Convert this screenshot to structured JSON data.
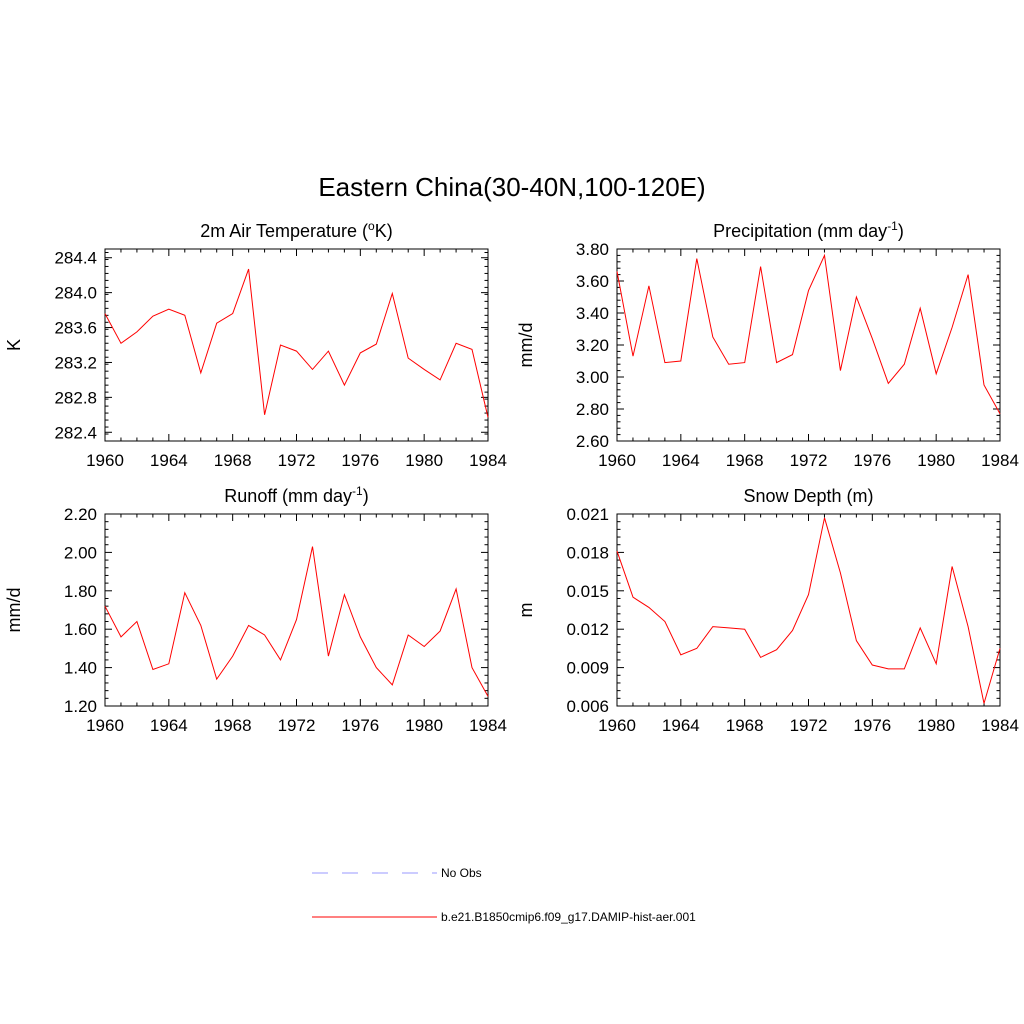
{
  "figure": {
    "title": "Eastern China(30-40N,100-120E)"
  },
  "legend": {
    "items": [
      {
        "label": "No Obs",
        "color": "#9999ff",
        "dashed": true
      },
      {
        "label": "b.e21.B1850cmip6.f09_g17.DAMIP-hist-aer.001",
        "color": "#ff0000",
        "dashed": false
      }
    ]
  },
  "chart_data": [
    {
      "type": "line",
      "title": "2m Air Temperature (",
      "title_sup": "o",
      "title_tail": "K)",
      "ylabel": "K",
      "xlim": [
        1960,
        1984
      ],
      "ylim": [
        282.3,
        284.5
      ],
      "xticks": [
        1960,
        1964,
        1968,
        1972,
        1976,
        1980,
        1984
      ],
      "yticks": [
        282.4,
        282.8,
        283.2,
        283.6,
        284.0,
        284.4
      ],
      "ytick_labels": [
        "282.4",
        "282.8",
        "283.2",
        "283.6",
        "284.0",
        "284.4"
      ],
      "x": [
        1960,
        1961,
        1962,
        1963,
        1964,
        1965,
        1966,
        1967,
        1968,
        1969,
        1970,
        1971,
        1972,
        1973,
        1974,
        1975,
        1976,
        1977,
        1978,
        1979,
        1980,
        1981,
        1982,
        1983,
        1984
      ],
      "series": [
        {
          "color": "#ff0000",
          "values": [
            283.76,
            283.42,
            283.55,
            283.73,
            283.81,
            283.74,
            283.08,
            283.65,
            283.76,
            284.27,
            282.6,
            283.4,
            283.33,
            283.12,
            283.33,
            282.94,
            283.31,
            283.41,
            283.99,
            283.25,
            283.12,
            283.0,
            283.42,
            283.35,
            282.57
          ]
        }
      ]
    },
    {
      "type": "line",
      "title": "Precipitation (mm day",
      "title_sup": "-1",
      "title_tail": ")",
      "ylabel": "mm/d",
      "xlim": [
        1960,
        1984
      ],
      "ylim": [
        2.6,
        3.8
      ],
      "xticks": [
        1960,
        1964,
        1968,
        1972,
        1976,
        1980,
        1984
      ],
      "yticks": [
        2.6,
        2.8,
        3.0,
        3.2,
        3.4,
        3.6,
        3.8
      ],
      "ytick_labels": [
        "2.60",
        "2.80",
        "3.00",
        "3.20",
        "3.40",
        "3.60",
        "3.80"
      ],
      "x": [
        1960,
        1961,
        1962,
        1963,
        1964,
        1965,
        1966,
        1967,
        1968,
        1969,
        1970,
        1971,
        1972,
        1973,
        1974,
        1975,
        1976,
        1977,
        1978,
        1979,
        1980,
        1981,
        1982,
        1983,
        1984
      ],
      "series": [
        {
          "color": "#ff0000",
          "values": [
            3.66,
            3.13,
            3.57,
            3.09,
            3.1,
            3.74,
            3.25,
            3.08,
            3.09,
            3.69,
            3.09,
            3.14,
            3.54,
            3.76,
            3.04,
            3.5,
            3.24,
            2.96,
            3.08,
            3.43,
            3.02,
            3.31,
            3.64,
            2.95,
            2.77
          ]
        }
      ]
    },
    {
      "type": "line",
      "title": "Runoff (mm day",
      "title_sup": "-1",
      "title_tail": ")",
      "ylabel": "mm/d",
      "xlim": [
        1960,
        1984
      ],
      "ylim": [
        1.2,
        2.2
      ],
      "xticks": [
        1960,
        1964,
        1968,
        1972,
        1976,
        1980,
        1984
      ],
      "yticks": [
        1.2,
        1.4,
        1.6,
        1.8,
        2.0,
        2.2
      ],
      "ytick_labels": [
        "1.20",
        "1.40",
        "1.60",
        "1.80",
        "2.00",
        "2.20"
      ],
      "x": [
        1960,
        1961,
        1962,
        1963,
        1964,
        1965,
        1966,
        1967,
        1968,
        1969,
        1970,
        1971,
        1972,
        1973,
        1974,
        1975,
        1976,
        1977,
        1978,
        1979,
        1980,
        1981,
        1982,
        1983,
        1984
      ],
      "series": [
        {
          "color": "#ff0000",
          "values": [
            1.72,
            1.56,
            1.64,
            1.39,
            1.42,
            1.79,
            1.62,
            1.34,
            1.46,
            1.62,
            1.57,
            1.44,
            1.65,
            2.03,
            1.46,
            1.78,
            1.56,
            1.4,
            1.31,
            1.57,
            1.51,
            1.59,
            1.81,
            1.4,
            1.25
          ]
        }
      ]
    },
    {
      "type": "line",
      "title": "Snow Depth (m)",
      "title_sup": "",
      "title_tail": "",
      "ylabel": "m",
      "xlim": [
        1960,
        1984
      ],
      "ylim": [
        0.006,
        0.021
      ],
      "xticks": [
        1960,
        1964,
        1968,
        1972,
        1976,
        1980,
        1984
      ],
      "yticks": [
        0.006,
        0.009,
        0.012,
        0.015,
        0.018,
        0.021
      ],
      "ytick_labels": [
        "0.006",
        "0.009",
        "0.012",
        "0.015",
        "0.018",
        "0.021"
      ],
      "x": [
        1960,
        1961,
        1962,
        1963,
        1964,
        1965,
        1966,
        1967,
        1968,
        1969,
        1970,
        1971,
        1972,
        1973,
        1974,
        1975,
        1976,
        1977,
        1978,
        1979,
        1980,
        1981,
        1982,
        1983,
        1984
      ],
      "series": [
        {
          "color": "#ff0000",
          "values": [
            0.0181,
            0.0145,
            0.0137,
            0.0126,
            0.01,
            0.0105,
            0.0122,
            0.0121,
            0.012,
            0.0098,
            0.0104,
            0.0119,
            0.0147,
            0.0207,
            0.0164,
            0.0111,
            0.0092,
            0.0089,
            0.0089,
            0.0121,
            0.0093,
            0.0169,
            0.0122,
            0.0062,
            0.0105
          ]
        }
      ]
    }
  ]
}
